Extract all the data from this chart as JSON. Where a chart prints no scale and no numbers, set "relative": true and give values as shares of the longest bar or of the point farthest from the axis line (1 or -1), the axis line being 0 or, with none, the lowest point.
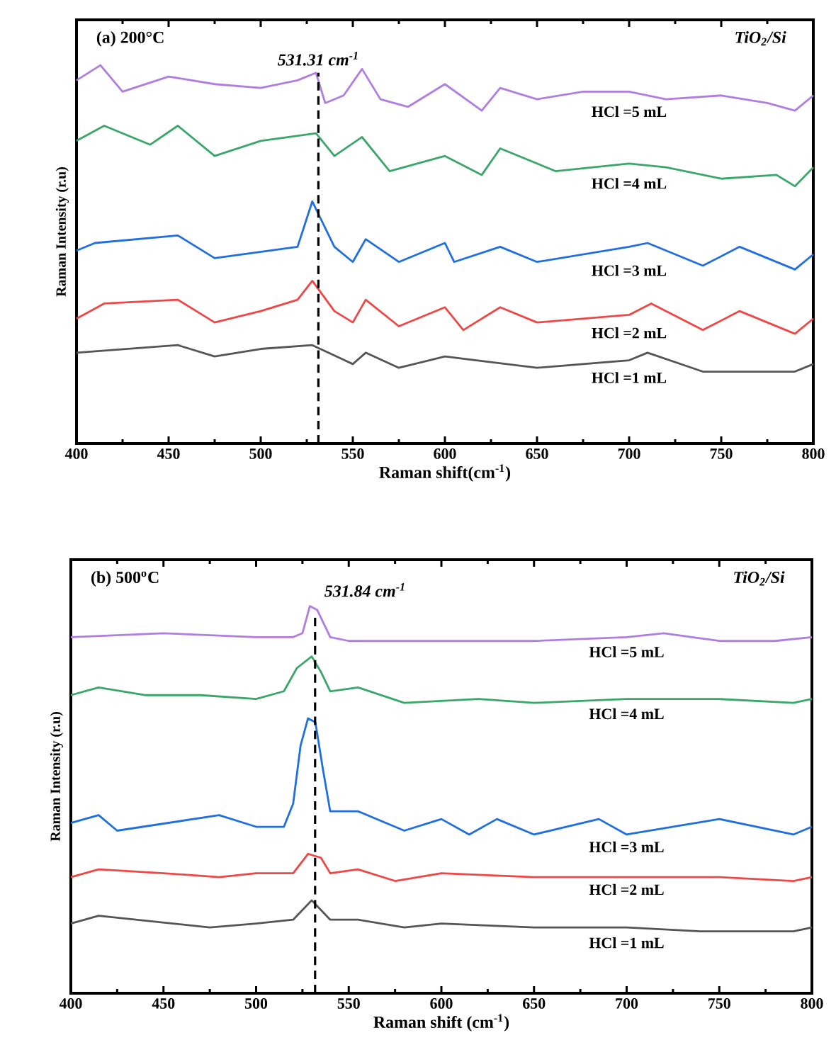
{
  "chart_data": [
    {
      "type": "line",
      "relative": true,
      "xlabel": "Raman shift(cm$^{-1}$)",
      "ylabel": "Raman Intensity (r.u)",
      "xlim": [
        400,
        800
      ],
      "xticks": [
        400,
        450,
        500,
        550,
        600,
        650,
        700,
        750,
        800
      ],
      "tick_labels": "x",
      "annotations": [
        "(a) 200°C",
        "TiO$_{2}$/Si"
      ],
      "ref_lines": [
        {
          "axis": "x",
          "value": 531.31,
          "label": "531.31 cm$^{-1}$",
          "color": "#000000",
          "line_style": "dashed"
        }
      ],
      "series": [
        {
          "name": "HCl =5 mL",
          "color": "#b07de0",
          "x": [
            400,
            413,
            425,
            450,
            475,
            500,
            520,
            530,
            535,
            545,
            555,
            565,
            580,
            600,
            620,
            630,
            650,
            675,
            700,
            720,
            750,
            775,
            790,
            800
          ],
          "values": [
            0.96,
            1.0,
            0.93,
            0.97,
            0.95,
            0.94,
            0.96,
            0.98,
            0.9,
            0.92,
            0.99,
            0.91,
            0.89,
            0.95,
            0.88,
            0.94,
            0.91,
            0.93,
            0.93,
            0.91,
            0.92,
            0.9,
            0.88,
            0.92
          ]
        },
        {
          "name": "HCl =4 mL",
          "color": "#3aa66a",
          "x": [
            400,
            415,
            440,
            455,
            475,
            500,
            530,
            540,
            555,
            570,
            600,
            620,
            630,
            660,
            700,
            720,
            750,
            780,
            790,
            800
          ],
          "values": [
            0.8,
            0.84,
            0.79,
            0.84,
            0.76,
            0.8,
            0.82,
            0.76,
            0.81,
            0.72,
            0.76,
            0.71,
            0.78,
            0.72,
            0.74,
            0.73,
            0.7,
            0.71,
            0.68,
            0.73
          ]
        },
        {
          "name": "HCl =3 mL",
          "color": "#1f6fe0",
          "x": [
            400,
            410,
            455,
            475,
            520,
            528,
            540,
            550,
            557,
            575,
            600,
            605,
            630,
            650,
            700,
            710,
            740,
            760,
            790,
            800
          ],
          "values": [
            0.51,
            0.53,
            0.55,
            0.49,
            0.52,
            0.64,
            0.52,
            0.48,
            0.54,
            0.48,
            0.53,
            0.48,
            0.52,
            0.48,
            0.52,
            0.53,
            0.47,
            0.52,
            0.46,
            0.5
          ]
        },
        {
          "name": "HCl =2 mL",
          "color": "#ef4646",
          "x": [
            400,
            415,
            455,
            475,
            500,
            520,
            528,
            540,
            550,
            557,
            575,
            600,
            610,
            630,
            650,
            700,
            712,
            740,
            760,
            790,
            800
          ],
          "values": [
            0.33,
            0.37,
            0.38,
            0.32,
            0.35,
            0.38,
            0.43,
            0.35,
            0.32,
            0.38,
            0.31,
            0.36,
            0.3,
            0.36,
            0.32,
            0.34,
            0.37,
            0.3,
            0.35,
            0.29,
            0.33
          ]
        },
        {
          "name": "HCl =1 mL",
          "color": "#555555",
          "x": [
            400,
            455,
            475,
            500,
            528,
            550,
            557,
            575,
            600,
            650,
            700,
            710,
            740,
            790,
            800
          ],
          "values": [
            0.24,
            0.26,
            0.23,
            0.25,
            0.26,
            0.21,
            0.24,
            0.2,
            0.23,
            0.2,
            0.22,
            0.24,
            0.19,
            0.19,
            0.21
          ]
        }
      ]
    },
    {
      "type": "line",
      "relative": true,
      "xlabel": "Raman shift (cm$^{-1}$)",
      "ylabel": "Raman Intensity (r.u)",
      "xlim": [
        400,
        800
      ],
      "xticks": [
        400,
        450,
        500,
        550,
        600,
        650,
        700,
        750,
        800
      ],
      "tick_labels": "x",
      "annotations": [
        "(b) 500$^{o}$C",
        "TiO$_{2}$/Si"
      ],
      "ref_lines": [
        {
          "axis": "x",
          "value": 531.84,
          "label": "531.84 cm$^{-1}$",
          "color": "#000000",
          "line_style": "dashed"
        }
      ],
      "series": [
        {
          "name": "HCl =5 mL",
          "color": "#b07de0",
          "x": [
            400,
            450,
            500,
            520,
            525,
            529,
            533,
            537,
            540,
            550,
            600,
            650,
            700,
            720,
            750,
            780,
            800
          ],
          "values": [
            0.92,
            0.93,
            0.92,
            0.92,
            0.93,
            1.0,
            0.99,
            0.95,
            0.92,
            0.91,
            0.91,
            0.91,
            0.92,
            0.93,
            0.91,
            0.91,
            0.92
          ]
        },
        {
          "name": "HCl =4 mL",
          "color": "#3aa66a",
          "x": [
            400,
            415,
            440,
            470,
            500,
            515,
            522,
            530,
            535,
            540,
            555,
            580,
            620,
            650,
            700,
            750,
            790,
            800
          ],
          "values": [
            0.77,
            0.79,
            0.77,
            0.77,
            0.76,
            0.78,
            0.84,
            0.87,
            0.83,
            0.78,
            0.79,
            0.75,
            0.76,
            0.75,
            0.76,
            0.76,
            0.75,
            0.76
          ]
        },
        {
          "name": "HCl =3 mL",
          "color": "#1f6fe0",
          "x": [
            400,
            415,
            425,
            480,
            500,
            515,
            520,
            524,
            528,
            532,
            536,
            540,
            555,
            580,
            600,
            615,
            630,
            650,
            685,
            700,
            750,
            790,
            800
          ],
          "values": [
            0.44,
            0.46,
            0.42,
            0.46,
            0.43,
            0.43,
            0.49,
            0.64,
            0.71,
            0.7,
            0.58,
            0.47,
            0.47,
            0.42,
            0.45,
            0.41,
            0.45,
            0.41,
            0.45,
            0.41,
            0.45,
            0.41,
            0.43
          ]
        },
        {
          "name": "HCl =2 mL",
          "color": "#ef4646",
          "x": [
            400,
            415,
            450,
            480,
            500,
            520,
            528,
            535,
            540,
            555,
            575,
            600,
            650,
            700,
            750,
            790,
            800
          ],
          "values": [
            0.3,
            0.32,
            0.31,
            0.3,
            0.31,
            0.31,
            0.36,
            0.35,
            0.31,
            0.32,
            0.29,
            0.31,
            0.3,
            0.3,
            0.3,
            0.29,
            0.3
          ]
        },
        {
          "name": "HCl =1 mL",
          "color": "#555555",
          "x": [
            400,
            415,
            475,
            500,
            520,
            530,
            540,
            555,
            580,
            600,
            650,
            700,
            740,
            790,
            800
          ],
          "values": [
            0.18,
            0.2,
            0.17,
            0.18,
            0.19,
            0.24,
            0.19,
            0.19,
            0.17,
            0.18,
            0.17,
            0.17,
            0.16,
            0.16,
            0.17
          ]
        }
      ]
    }
  ]
}
